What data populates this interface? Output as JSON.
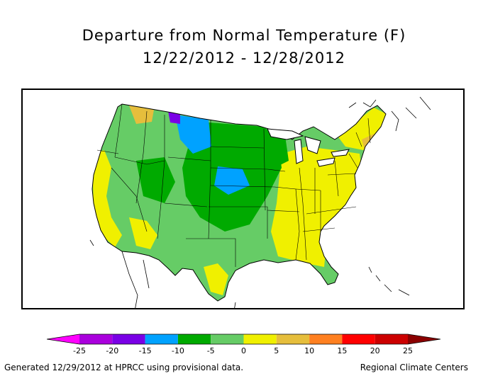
{
  "title": "Departure from Normal Temperature (F)",
  "subtitle": "12/22/2012 - 12/28/2012",
  "legend": {
    "ticks": [
      "-25",
      "-20",
      "-15",
      "-10",
      "-5",
      "0",
      "5",
      "10",
      "15",
      "20",
      "25"
    ],
    "bins": [
      {
        "from": null,
        "to": -25,
        "color": "#ff00ff"
      },
      {
        "from": -25,
        "to": -20,
        "color": "#aa00dd"
      },
      {
        "from": -20,
        "to": -15,
        "color": "#7a00e6"
      },
      {
        "from": -15,
        "to": -10,
        "color": "#00a2ff"
      },
      {
        "from": -10,
        "to": -5,
        "color": "#00aa00"
      },
      {
        "from": -5,
        "to": 0,
        "color": "#66cc66"
      },
      {
        "from": 0,
        "to": 5,
        "color": "#f0f000"
      },
      {
        "from": 5,
        "to": 10,
        "color": "#e6be3c"
      },
      {
        "from": 10,
        "to": 15,
        "color": "#ff8020"
      },
      {
        "from": 15,
        "to": 20,
        "color": "#ff0000"
      },
      {
        "from": 20,
        "to": 25,
        "color": "#cc0000"
      },
      {
        "from": 25,
        "to": null,
        "color": "#8b0000"
      }
    ]
  },
  "footer": {
    "left": "Generated 12/29/2012 at HPRCC using provisional data.",
    "right": "Regional Climate Centers"
  }
}
